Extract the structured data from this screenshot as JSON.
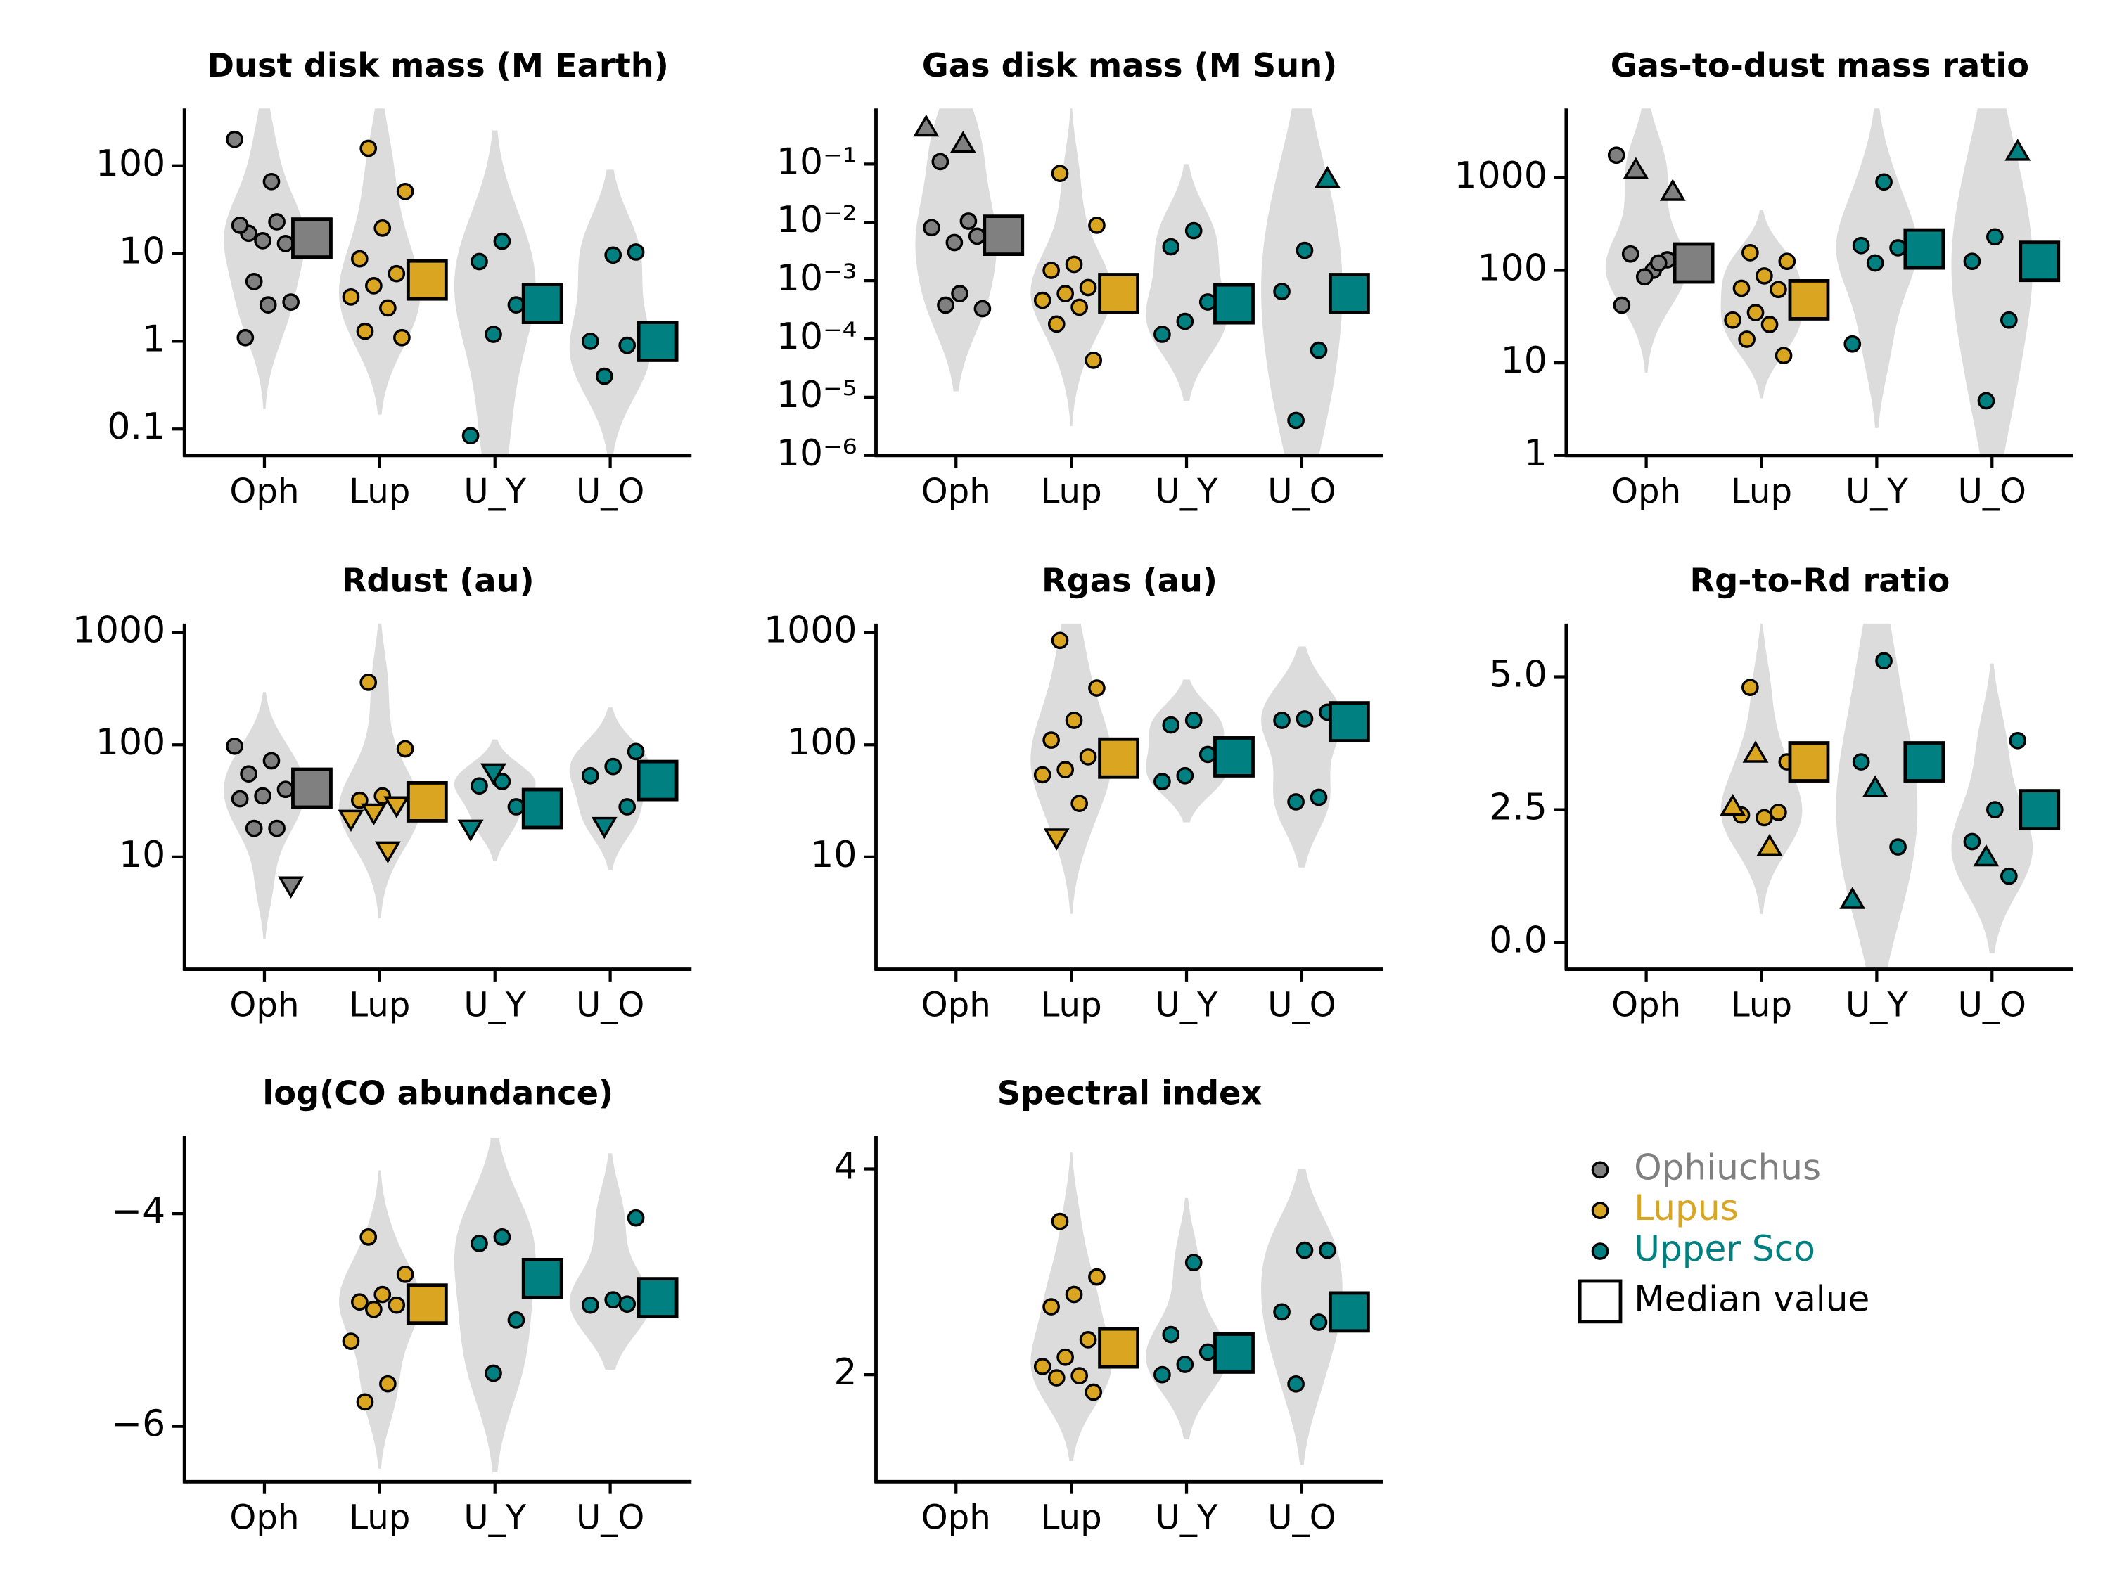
{
  "chart_data": [
    {
      "type": "violin",
      "title": "Dust disk mass (M Earth)",
      "categories": [
        "Oph",
        "Lup",
        "U_Y",
        "U_O"
      ],
      "log": true,
      "ylim": [
        0.05,
        450
      ],
      "yticks": [
        0.1,
        1,
        10,
        100
      ],
      "groups": [
        {
          "color": "#808080",
          "values": [
            200,
            66,
            17,
            13,
            14,
            21,
            23,
            4.8,
            2.8,
            2.6,
            1.1
          ],
          "markers": [
            "o",
            "o",
            "o",
            "o",
            "o",
            "o",
            "o",
            "o",
            "o",
            "o",
            "o"
          ],
          "median": 15
        },
        {
          "color": "#daa520",
          "values": [
            158,
            51,
            19.5,
            8.7,
            5.9,
            4.3,
            3.2,
            2.4,
            1.3,
            1.1
          ],
          "markers": [
            "o",
            "o",
            "o",
            "o",
            "o",
            "o",
            "o",
            "o",
            "o",
            "o"
          ],
          "median": 5
        },
        {
          "color": "#008080",
          "values": [
            13.8,
            8.1,
            2.6,
            1.2,
            0.084
          ],
          "markers": [
            "o",
            "o",
            "o",
            "o",
            "o"
          ],
          "median": 2.7
        },
        {
          "color": "#008080",
          "values": [
            10.4,
            9.6,
            1.0,
            0.9,
            0.4
          ],
          "markers": [
            "o",
            "o",
            "o",
            "o",
            "o"
          ],
          "median": 1.0
        }
      ]
    },
    {
      "type": "violin",
      "title": "Gas disk mass (M Sun)",
      "categories": [
        "Oph",
        "Lup",
        "U_Y",
        "U_O"
      ],
      "log": true,
      "ylim": [
        1e-06,
        0.9
      ],
      "yticks": [
        {
          "value": 0.1,
          "label": "10⁻¹"
        },
        {
          "value": 0.01,
          "label": "10⁻²"
        },
        {
          "value": 0.001,
          "label": "10⁻³"
        },
        {
          "value": 0.0001,
          "label": "10⁻⁴"
        },
        {
          "value": 1e-05,
          "label": "10⁻⁵"
        },
        {
          "value": 1e-06,
          "label": "10⁻⁶"
        }
      ],
      "groups": [
        {
          "color": "#808080",
          "values": [
            0.42,
            0.22,
            0.11,
            0.0058,
            0.0045,
            0.0081,
            0.0105,
            0.00038,
            0.00033,
            0.0006
          ],
          "markers": [
            "^",
            "^",
            "o",
            "o",
            "o",
            "o",
            "o",
            "o",
            "o",
            "o"
          ],
          "median": 0.006
        },
        {
          "color": "#daa520",
          "values": [
            0.069,
            0.0089,
            0.0019,
            0.0015,
            0.00076,
            0.0006,
            0.00046,
            0.00035,
            0.00018,
            4.3e-05
          ],
          "markers": [
            "o",
            "o",
            "o",
            "o",
            "o",
            "o",
            "o",
            "o",
            "o",
            "o"
          ],
          "median": 0.0006
        },
        {
          "color": "#008080",
          "values": [
            0.0072,
            0.0038,
            0.00043,
            0.0002,
            0.00012
          ],
          "markers": [
            "o",
            "o",
            "o",
            "o",
            "o"
          ],
          "median": 0.0004
        },
        {
          "color": "#008080",
          "values": [
            0.055,
            0.0033,
            0.00065,
            6.4e-05,
            4e-06
          ],
          "markers": [
            "^",
            "o",
            "o",
            "o",
            "o"
          ],
          "median": 0.0006
        }
      ]
    },
    {
      "type": "violin",
      "title": "Gas-to-dust mass ratio",
      "categories": [
        "Oph",
        "Lup",
        "U_Y",
        "U_O"
      ],
      "log": true,
      "ylim": [
        1,
        5600
      ],
      "yticks": [
        1,
        10,
        100,
        1000
      ],
      "groups": [
        {
          "color": "#808080",
          "values": [
            1750,
            100,
            150,
            130,
            85,
            42,
            120,
            1200,
            700
          ],
          "markers": [
            "o",
            "o",
            "o",
            "o",
            "o",
            "o",
            "o",
            "^",
            "^"
          ],
          "median": 120
        },
        {
          "color": "#daa520",
          "values": [
            155,
            125,
            87,
            64,
            62,
            35,
            29,
            26,
            18,
            12
          ],
          "markers": [
            "o",
            "o",
            "o",
            "o",
            "o",
            "o",
            "o",
            "o",
            "o",
            "o"
          ],
          "median": 48
        },
        {
          "color": "#008080",
          "values": [
            900,
            185,
            175,
            120,
            16
          ],
          "markers": [
            "o",
            "o",
            "o",
            "o",
            "o"
          ],
          "median": 170
        },
        {
          "color": "#008080",
          "values": [
            1900,
            230,
            125,
            29,
            3.9
          ],
          "markers": [
            "^",
            "o",
            "o",
            "o",
            "o"
          ],
          "median": 125
        }
      ]
    },
    {
      "type": "violin",
      "title": "Rdust (au)",
      "categories": [
        "Oph",
        "Lup",
        "U_Y",
        "U_O"
      ],
      "log": true,
      "ylim": [
        1,
        1200
      ],
      "yticks": [
        10,
        100,
        1000
      ],
      "groups": [
        {
          "color": "#808080",
          "values": [
            97,
            72,
            55,
            40,
            35,
            33,
            18,
            18,
            5.6
          ],
          "markers": [
            "o",
            "o",
            "o",
            "o",
            "o",
            "o",
            "o",
            "o",
            "v"
          ],
          "median": 41
        },
        {
          "color": "#daa520",
          "values": [
            360,
            92,
            35,
            32,
            29,
            25,
            22,
            11.5
          ],
          "markers": [
            "o",
            "o",
            "o",
            "o",
            "v",
            "v",
            "v",
            "v"
          ],
          "median": 31
        },
        {
          "color": "#008080",
          "values": [
            47,
            43,
            28,
            57,
            18
          ],
          "markers": [
            "o",
            "o",
            "o",
            "v",
            "v"
          ],
          "median": 27
        },
        {
          "color": "#008080",
          "values": [
            87,
            64,
            53,
            28,
            19
          ],
          "markers": [
            "o",
            "o",
            "o",
            "o",
            "v"
          ],
          "median": 48
        }
      ]
    },
    {
      "type": "violin",
      "title": "Rgas (au)",
      "categories": [
        "Oph",
        "Lup",
        "U_Y",
        "U_O"
      ],
      "log": true,
      "ylim": [
        1,
        1200
      ],
      "yticks": [
        10,
        100,
        1000
      ],
      "groups": [
        {
          "values": [],
          "markers": [],
          "median": null
        },
        {
          "color": "#daa520",
          "values": [
            850,
            320,
            165,
            110,
            78,
            60,
            54,
            30,
            15
          ],
          "markers": [
            "o",
            "o",
            "o",
            "o",
            "o",
            "o",
            "o",
            "o",
            "v"
          ],
          "median": 76
        },
        {
          "color": "#008080",
          "values": [
            165,
            150,
            82,
            53,
            47
          ],
          "markers": [
            "o",
            "o",
            "o",
            "o",
            "o"
          ],
          "median": 78
        },
        {
          "color": "#008080",
          "values": [
            195,
            170,
            165,
            34,
            31
          ],
          "markers": [
            "o",
            "o",
            "o",
            "o",
            "o"
          ],
          "median": 160
        }
      ]
    },
    {
      "type": "violin",
      "title": "Rg-to-Rd ratio",
      "categories": [
        "Oph",
        "Lup",
        "U_Y",
        "U_O"
      ],
      "log": false,
      "ylim": [
        -0.5,
        6
      ],
      "yticks": [
        {
          "value": 0,
          "label": "0.0"
        },
        2.5,
        {
          "value": 5,
          "label": "5.0"
        }
      ],
      "groups": [
        {
          "values": [],
          "markers": [],
          "median": null
        },
        {
          "color": "#daa520",
          "values": [
            4.8,
            3.4,
            2.35,
            2.4,
            2.45,
            3.55,
            2.55,
            1.8
          ],
          "markers": [
            "o",
            "o",
            "o",
            "o",
            "o",
            "^",
            "^",
            "^"
          ],
          "median": 3.4
        },
        {
          "color": "#008080",
          "values": [
            5.3,
            3.4,
            1.8,
            2.9,
            0.8
          ],
          "markers": [
            "o",
            "o",
            "o",
            "^",
            "^"
          ],
          "median": 3.4
        },
        {
          "color": "#008080",
          "values": [
            3.8,
            2.5,
            1.9,
            1.25,
            1.6
          ],
          "markers": [
            "o",
            "o",
            "o",
            "o",
            "^"
          ],
          "median": 2.5
        }
      ]
    },
    {
      "type": "violin",
      "title": "log(CO abundance)",
      "categories": [
        "Oph",
        "Lup",
        "U_Y",
        "U_O"
      ],
      "log": false,
      "ylim": [
        -6.52,
        -3.27
      ],
      "yticks": [
        {
          "value": -6,
          "label": "−6"
        },
        {
          "value": -4,
          "label": "−4"
        }
      ],
      "groups": [
        {
          "values": [],
          "markers": [],
          "median": null
        },
        {
          "color": "#daa520",
          "values": [
            -4.22,
            -4.57,
            -4.76,
            -4.83,
            -4.86,
            -4.9,
            -5.2,
            -5.6,
            -5.77
          ],
          "markers": [
            "o",
            "o",
            "o",
            "o",
            "o",
            "o",
            "o",
            "o",
            "o"
          ],
          "median": -4.85
        },
        {
          "color": "#008080",
          "values": [
            -4.22,
            -4.28,
            -5.0,
            -5.5
          ],
          "markers": [
            "o",
            "o",
            "o",
            "o"
          ],
          "median": -4.61
        },
        {
          "color": "#008080",
          "values": [
            -4.04,
            -4.81,
            -4.86,
            -4.85
          ],
          "markers": [
            "o",
            "o",
            "o",
            "o"
          ],
          "median": -4.79
        }
      ]
    },
    {
      "type": "violin",
      "title": "Spectral index",
      "categories": [
        "Oph",
        "Lup",
        "U_Y",
        "U_O"
      ],
      "log": false,
      "ylim": [
        0.96,
        4.32
      ],
      "yticks": [
        2,
        4
      ],
      "groups": [
        {
          "values": [],
          "markers": [],
          "median": null
        },
        {
          "color": "#daa520",
          "values": [
            3.49,
            2.95,
            2.78,
            2.66,
            2.34,
            2.17,
            2.08,
            1.99,
            1.97,
            1.83
          ],
          "markers": [
            "o",
            "o",
            "o",
            "o",
            "o",
            "o",
            "o",
            "o",
            "o",
            "o"
          ],
          "median": 2.26
        },
        {
          "color": "#008080",
          "values": [
            3.09,
            2.39,
            2.22,
            2.1,
            2.0
          ],
          "markers": [
            "o",
            "o",
            "o",
            "o",
            "o"
          ],
          "median": 2.21
        },
        {
          "color": "#008080",
          "values": [
            3.21,
            3.21,
            2.61,
            2.51,
            1.91
          ],
          "markers": [
            "o",
            "o",
            "o",
            "o",
            "o"
          ],
          "median": 2.61
        }
      ]
    }
  ],
  "legend": [
    {
      "name": "Ophiuchus",
      "color": "#808080"
    },
    {
      "name": "Lupus",
      "color": "#daa520"
    },
    {
      "name": "Upper Sco",
      "color": "#008080"
    },
    {
      "name": "Median value"
    }
  ]
}
